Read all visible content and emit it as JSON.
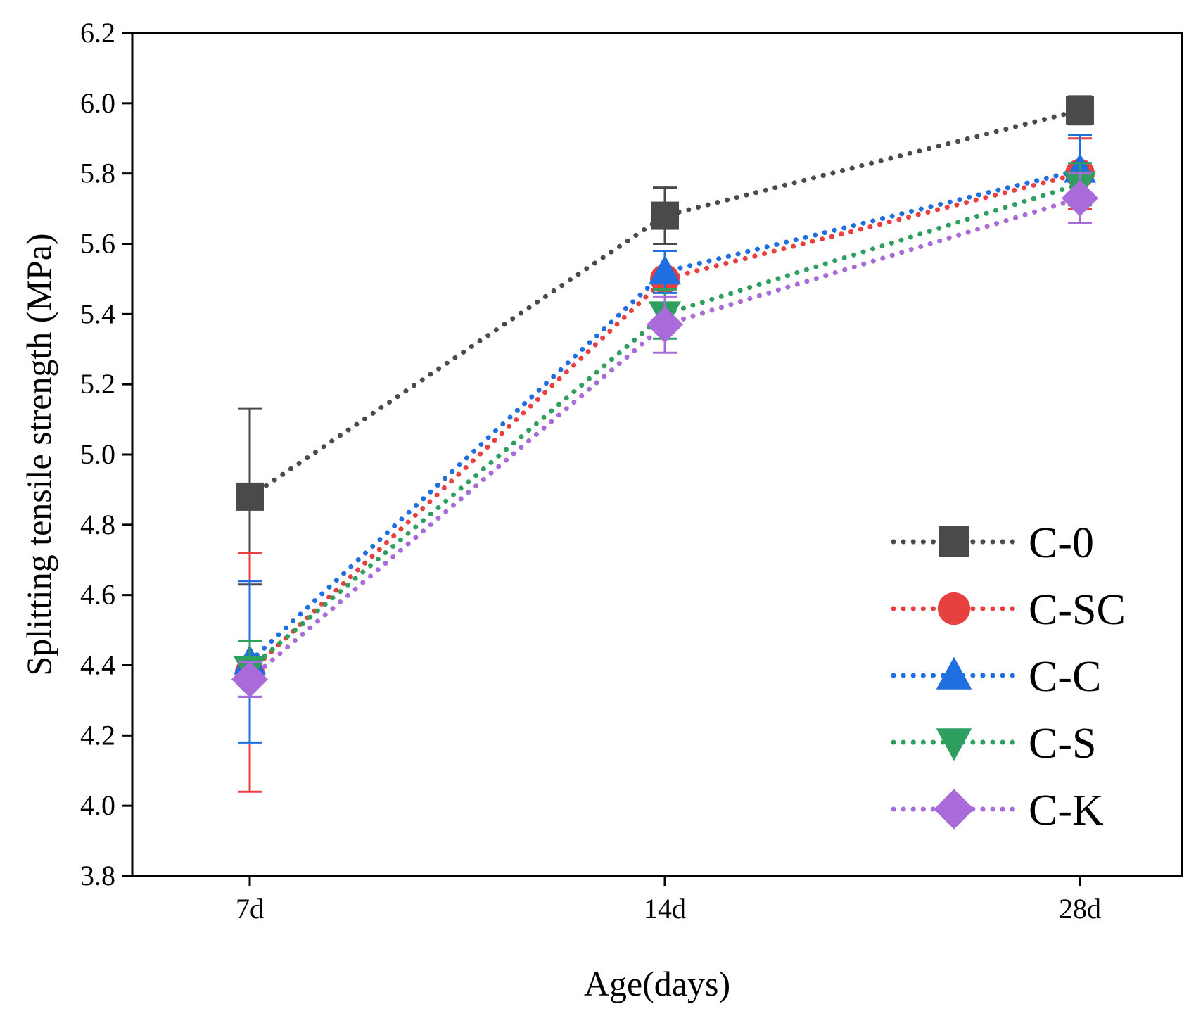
{
  "chart_data": {
    "type": "line",
    "xlabel": "Age(days)",
    "ylabel": "Splitting tensile strength (MPa)",
    "categories": [
      "7d",
      "14d",
      "28d"
    ],
    "ylim": [
      3.8,
      6.2
    ],
    "yticks": [
      "3.8",
      "4.0",
      "4.2",
      "4.4",
      "4.6",
      "4.8",
      "5.0",
      "5.2",
      "5.4",
      "5.6",
      "5.8",
      "6.0",
      "6.2"
    ],
    "legend_position": "bottom-right",
    "grid": false,
    "series": [
      {
        "name": "C-0",
        "color": "#4a4a4a",
        "marker": "square",
        "values": [
          4.88,
          5.68,
          5.98
        ],
        "errors": [
          0.25,
          0.08,
          0.04
        ]
      },
      {
        "name": "C-SC",
        "color": "#e8403f",
        "marker": "circle",
        "values": [
          4.38,
          5.5,
          5.8
        ],
        "errors": [
          0.34,
          0.08,
          0.1
        ]
      },
      {
        "name": "C-C",
        "color": "#1f6fe0",
        "marker": "triangle-up",
        "values": [
          4.41,
          5.52,
          5.81
        ],
        "errors": [
          0.23,
          0.06,
          0.1
        ]
      },
      {
        "name": "C-S",
        "color": "#2e9f5f",
        "marker": "triangle-down",
        "values": [
          4.39,
          5.4,
          5.77
        ],
        "errors": [
          0.08,
          0.07,
          0.06
        ]
      },
      {
        "name": "C-K",
        "color": "#a96bd9",
        "marker": "diamond",
        "values": [
          4.36,
          5.37,
          5.73
        ],
        "errors": [
          0.05,
          0.08,
          0.07
        ]
      }
    ]
  }
}
